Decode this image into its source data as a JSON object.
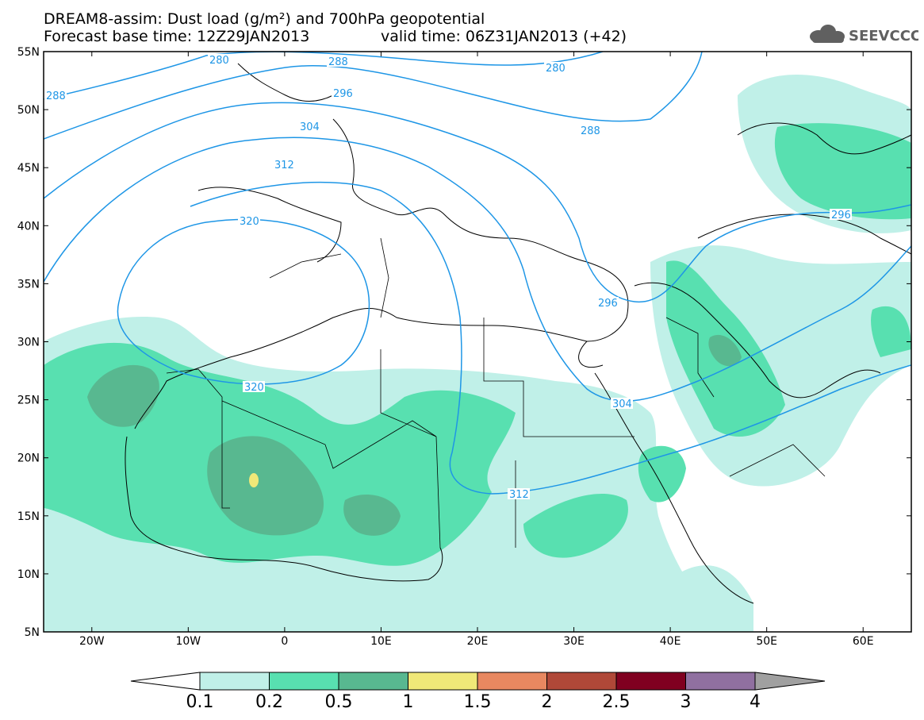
{
  "title": {
    "line1": "DREAM8-assim: Dust load (g/m²) and 700hPa geopotential",
    "line2": "Forecast base time: 12Z29JAN2013",
    "line2b": "valid time: 06Z31JAN2013 (+42)"
  },
  "logo": {
    "text": "SEEVCCC",
    "icon": "cloud-icon"
  },
  "axes": {
    "lon_labels": [
      "20W",
      "10W",
      "0",
      "10E",
      "20E",
      "30E",
      "40E",
      "50E",
      "60E"
    ],
    "lon_values": [
      -20,
      -10,
      0,
      10,
      20,
      30,
      40,
      50,
      60
    ],
    "lat_labels": [
      "55N",
      "50N",
      "45N",
      "40N",
      "35N",
      "30N",
      "25N",
      "20N",
      "15N",
      "10N",
      "5N"
    ],
    "lat_values": [
      55,
      50,
      45,
      40,
      35,
      30,
      25,
      20,
      15,
      10,
      5
    ],
    "lon_range": [
      -25,
      65
    ],
    "lat_range": [
      5,
      55
    ]
  },
  "colorbar": {
    "labels": [
      "0.1",
      "0.2",
      "0.5",
      "1",
      "1.5",
      "2",
      "2.5",
      "3",
      "4"
    ],
    "colors": [
      "#c0f0e8",
      "#58e0b0",
      "#58b890",
      "#f0e878",
      "#e88860",
      "#b04838",
      "#800020",
      "#9070a0",
      "#a0a0a0"
    ]
  },
  "contours": {
    "color": "#1e96e6",
    "labels": [
      "280",
      "288",
      "296",
      "304",
      "312",
      "320"
    ]
  }
}
